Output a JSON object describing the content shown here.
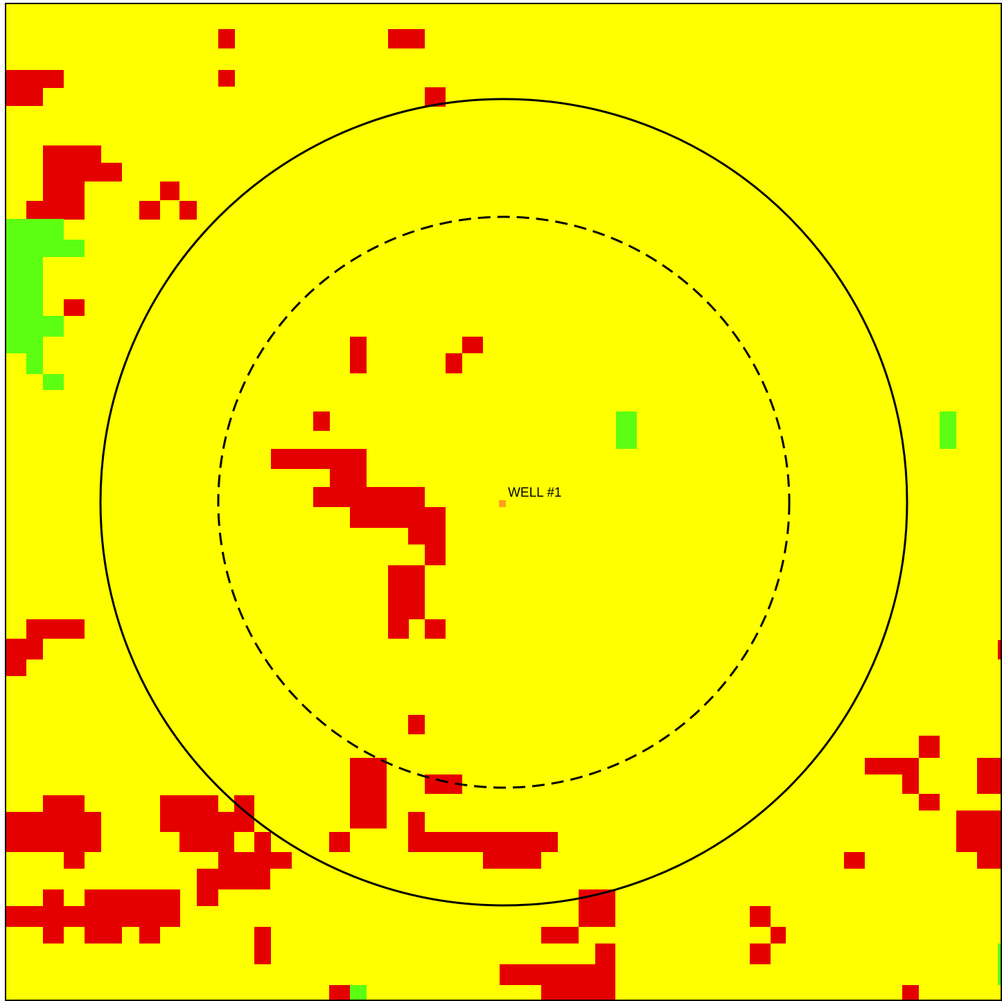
{
  "map": {
    "colors": {
      "background": "#ffff00",
      "red": "#e50000",
      "green": "#5cff11",
      "well": "#ffa01e",
      "ring": "#000000",
      "border": "#000000"
    },
    "well": {
      "label": "WELL #1"
    },
    "rings": [
      {
        "name": "outer-radius-ring",
        "style": "solid"
      },
      {
        "name": "inner-radius-ring",
        "style": "dashed"
      }
    ]
  }
}
